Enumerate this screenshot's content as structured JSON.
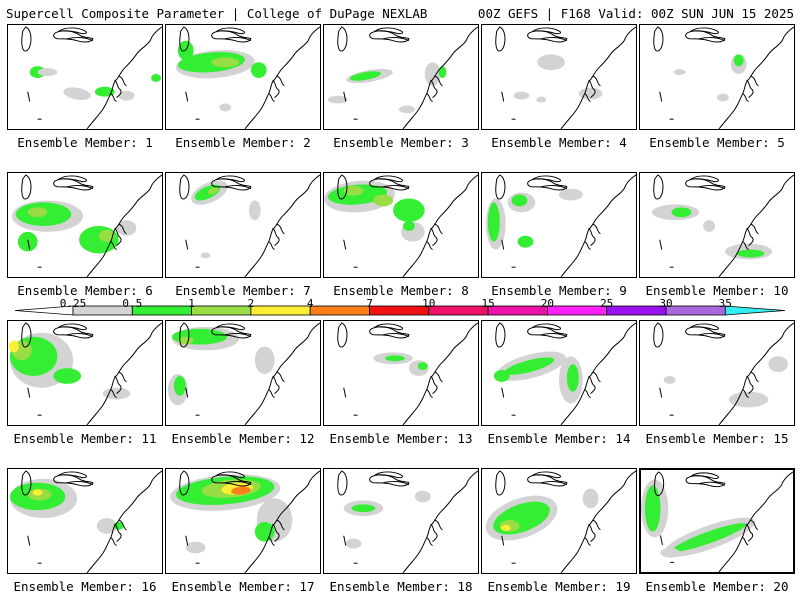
{
  "header": {
    "title": "Supercell Composite Parameter | College of DuPage NEXLAB",
    "run_info": "00Z GEFS | F168 Valid: 00Z SUN JUN 15 2025"
  },
  "colors": {
    "light_gray": "#d3d3d3",
    "green": "#33ee33",
    "light_green": "#99dd44",
    "yellow": "#ffee33",
    "orange": "#ff7f1a",
    "red": "#ee1111",
    "pink_red": "#ee1166",
    "magenta": "#ee11aa",
    "bright_magenta": "#ff22ff",
    "purple": "#9911ee",
    "lavender": "#aa66dd",
    "cyan": "#33eeee",
    "coast": "#000000",
    "white": "#ffffff"
  },
  "legend": {
    "ticks": [
      "0.25",
      "0.5",
      "1",
      "2",
      "4",
      "7",
      "10",
      "15",
      "20",
      "25",
      "30",
      "35"
    ],
    "bands": [
      "light_gray",
      "green",
      "light_green",
      "yellow",
      "orange",
      "red",
      "pink_red",
      "magenta",
      "bright_magenta",
      "purple",
      "lavender",
      "cyan"
    ]
  },
  "members": [
    {
      "label": "Ensemble Member: 1"
    },
    {
      "label": "Ensemble Member: 2"
    },
    {
      "label": "Ensemble Member: 3"
    },
    {
      "label": "Ensemble Member: 4"
    },
    {
      "label": "Ensemble Member: 5"
    },
    {
      "label": "Ensemble Member: 6"
    },
    {
      "label": "Ensemble Member: 7"
    },
    {
      "label": "Ensemble Member: 8"
    },
    {
      "label": "Ensemble Member: 9"
    },
    {
      "label": "Ensemble Member: 10"
    },
    {
      "label": "Ensemble Member: 11"
    },
    {
      "label": "Ensemble Member: 12"
    },
    {
      "label": "Ensemble Member: 13"
    },
    {
      "label": "Ensemble Member: 14"
    },
    {
      "label": "Ensemble Member: 15"
    },
    {
      "label": "Ensemble Member: 16"
    },
    {
      "label": "Ensemble Member: 17"
    },
    {
      "label": "Ensemble Member: 18"
    },
    {
      "label": "Ensemble Member: 19"
    },
    {
      "label": "Ensemble Member: 20"
    }
  ],
  "selected_member": 20
}
